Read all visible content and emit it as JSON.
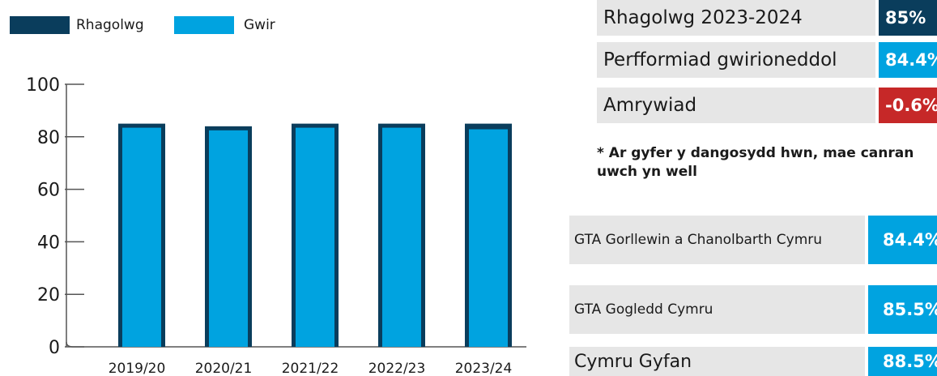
{
  "colors": {
    "forecast": "#0a3d5c",
    "actual": "#00a3e0",
    "variance_negative": "#c62828",
    "panel_grey": "#e6e6e6"
  },
  "chart_data": {
    "type": "bar",
    "categories": [
      "2019/20",
      "2020/21",
      "2021/22",
      "2022/23",
      "2023/24"
    ],
    "series": [
      {
        "name": "Rhagolwg",
        "values": [
          85,
          84,
          85,
          85,
          85
        ]
      },
      {
        "name": "Gwir",
        "values": [
          85,
          84,
          85,
          85,
          84.4
        ]
      }
    ],
    "ylim": [
      0,
      100
    ],
    "yticks": [
      0,
      20,
      40,
      60,
      80,
      100
    ],
    "grid": false,
    "legend_position": "top-left",
    "title": "",
    "xlabel": "",
    "ylabel": ""
  },
  "summary": [
    {
      "label": "Rhagolwg 2023-2024",
      "value": "85%",
      "color": "#0a3d5c"
    },
    {
      "label": "Perfformiad gwirioneddol",
      "value": "84.4%",
      "color": "#00a3e0"
    },
    {
      "label": "Amrywiad",
      "value": "-0.6%",
      "color": "#c62828"
    }
  ],
  "note": "* Ar gyfer y dangosydd hwn, mae canran uwch yn well",
  "comparison": [
    {
      "label": "GTA Gorllewin a Chanolbarth Cymru",
      "value": "84.4%"
    },
    {
      "label": "GTA Gogledd Cymru",
      "value": "85.5%"
    },
    {
      "label": "Cymru Gyfan",
      "value": "88.5%"
    }
  ]
}
